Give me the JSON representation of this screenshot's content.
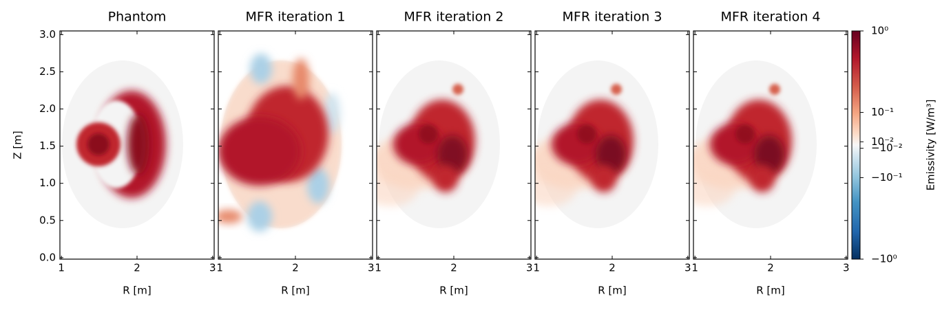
{
  "chart_data": [
    {
      "type": "heatmap",
      "title": "Phantom",
      "xlabel": "R [m]",
      "ylabel": "Z [m]",
      "xlim": [
        0.98,
        3.02
      ],
      "ylim": [
        -0.02,
        3.05
      ],
      "xticks": [
        1,
        2,
        3
      ],
      "yticks": [
        {
          "value": 0,
          "label": "0.0"
        },
        0.5,
        {
          "value": 1,
          "label": "1.0"
        },
        1.5,
        {
          "value": 2,
          "label": "2.0"
        },
        2.5,
        {
          "value": 3,
          "label": "3.0"
        }
      ],
      "yticklabels": true
    },
    {
      "type": "heatmap",
      "title": "MFR iteration 1",
      "xlabel": "R [m]",
      "xlim": [
        0.98,
        3.02
      ],
      "ylim": [
        -0.02,
        3.05
      ],
      "xticks": [
        1,
        2,
        3
      ],
      "yticks": [
        0,
        0.5,
        1,
        1.5,
        2,
        2.5,
        3
      ],
      "yticklabels": false
    },
    {
      "type": "heatmap",
      "title": "MFR iteration 2",
      "xlabel": "R [m]",
      "xlim": [
        0.98,
        3.02
      ],
      "ylim": [
        -0.02,
        3.05
      ],
      "xticks": [
        1,
        2,
        3
      ],
      "yticks": [
        0,
        0.5,
        1,
        1.5,
        2,
        2.5,
        3
      ],
      "yticklabels": false
    },
    {
      "type": "heatmap",
      "title": "MFR iteration 3",
      "xlabel": "R [m]",
      "xlim": [
        0.98,
        3.02
      ],
      "ylim": [
        -0.02,
        3.05
      ],
      "xticks": [
        1,
        2,
        3
      ],
      "yticks": [
        0,
        0.5,
        1,
        1.5,
        2,
        2.5,
        3
      ],
      "yticklabels": false
    },
    {
      "type": "heatmap",
      "title": "MFR iteration 4",
      "xlabel": "R [m]",
      "xlim": [
        0.98,
        3.02
      ],
      "ylim": [
        -0.02,
        3.05
      ],
      "xticks": [
        1,
        2,
        3
      ],
      "yticks": [
        0,
        0.5,
        1,
        1.5,
        2,
        2.5,
        3
      ],
      "yticklabels": false,
      "colorbar": {
        "label": "Emissivity [W/m³]",
        "scale": "symlog",
        "linthresh": 0.1,
        "linscale": 0.4,
        "lim": [
          -1,
          1
        ],
        "ticks": [
          {
            "value": 1,
            "label": "10⁰"
          },
          {
            "value": 0.1,
            "label": "10⁻¹"
          },
          {
            "value": 0.01,
            "label": "10⁻²"
          },
          {
            "value": -0.01,
            "label": "−10⁻²"
          },
          {
            "value": -0.1,
            "label": "−10⁻¹"
          },
          {
            "value": -1,
            "label": "−10⁰"
          }
        ]
      }
    }
  ]
}
